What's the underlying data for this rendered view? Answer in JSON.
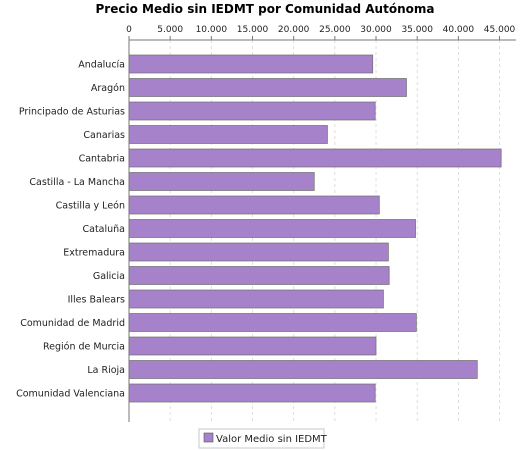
{
  "chart_data": {
    "type": "bar",
    "orientation": "horizontal",
    "title": "Precio Medio sin IEDMT por Comunidad Autónoma",
    "xlabel": "",
    "ylabel": "",
    "categories": [
      "Andalucía",
      "Aragón",
      "Principado de Asturias",
      "Canarias",
      "Cantabria",
      "Castilla - La Mancha",
      "Castilla y León",
      "Cataluña",
      "Extremadura",
      "Galicia",
      "Illes Balears",
      "Comunidad de Madrid",
      "Región de Murcia",
      "La Rioja",
      "Comunidad Valenciana"
    ],
    "series": [
      {
        "name": "Valor Medio sin IEDMT",
        "values": [
          29600,
          33700,
          29900,
          24100,
          45200,
          22500,
          30400,
          34800,
          31500,
          31600,
          30900,
          34900,
          30000,
          42300,
          29900
        ],
        "color": "#a582c9"
      }
    ],
    "xlim": [
      0,
      47000
    ],
    "ticks": [
      0,
      5000,
      10000,
      15000,
      20000,
      25000,
      30000,
      35000,
      40000,
      45000
    ],
    "tick_labels": [
      "0",
      "5.000",
      "10.000",
      "15.000",
      "20.000",
      "25.000",
      "30.000",
      "35.000",
      "40.000",
      "45.000"
    ],
    "grid": true,
    "legend_position": "bottom"
  }
}
